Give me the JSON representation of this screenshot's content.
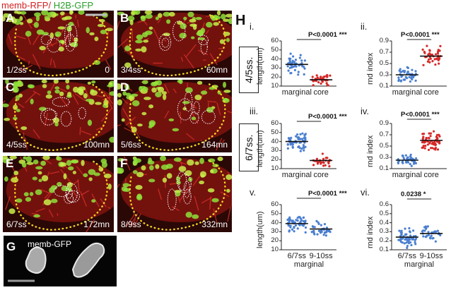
{
  "header": {
    "red_label": "memb-RFP/",
    "green_label": "H2B-GFP"
  },
  "panels": [
    {
      "letter": "A",
      "stage": "1/2ss",
      "time": "0"
    },
    {
      "letter": "B",
      "stage": "3/4ss",
      "time": "60mn"
    },
    {
      "letter": "C",
      "stage": "4/5ss",
      "time": "100mn"
    },
    {
      "letter": "D",
      "stage": "5/6ss",
      "time": "164mn"
    },
    {
      "letter": "E",
      "stage": "6/7ss",
      "time": "172mn"
    },
    {
      "letter": "F",
      "stage": "8/9ss",
      "time": "332mn"
    }
  ],
  "panel_g": {
    "letter": "G",
    "label": "memb-GFP"
  },
  "panel_h": {
    "letter": "H",
    "stage_a": "4/5ss.",
    "stage_b": "6/7ss."
  },
  "colors": {
    "red": "#d42020",
    "green": "#2a9d2a",
    "blue_dots": "#4a7fd0",
    "red_dots": "#d62828"
  },
  "chart_data": [
    {
      "id": "i",
      "type": "scatter",
      "ylabel": "length(um)",
      "ylim": [
        10,
        60
      ],
      "yticks": [
        "60",
        "50",
        "40",
        "30",
        "20",
        "10"
      ],
      "categories": [
        "marginal",
        "core"
      ],
      "series": [
        {
          "name": "marginal",
          "mean": 34,
          "spread": 8,
          "n": 45,
          "color": "#4a7fd0"
        },
        {
          "name": "core",
          "mean": 17,
          "spread": 4,
          "n": 40,
          "color": "#d62828"
        }
      ],
      "annotation": {
        "pvalue": "P<0.0001",
        "stars": "***"
      }
    },
    {
      "id": "ii",
      "type": "scatter",
      "ylabel": "rnd index",
      "ylim": [
        0.1,
        0.9
      ],
      "yticks": [
        "0.9",
        "0.7",
        "0.5",
        "0.3",
        "0.1"
      ],
      "categories": [
        "marginal",
        "core"
      ],
      "series": [
        {
          "name": "marginal",
          "mean": 0.3,
          "spread": 0.1,
          "n": 45,
          "color": "#4a7fd0"
        },
        {
          "name": "core",
          "mean": 0.63,
          "spread": 0.12,
          "n": 40,
          "color": "#d62828"
        }
      ],
      "annotation": {
        "pvalue": "P<0.0001",
        "stars": "***"
      }
    },
    {
      "id": "iii",
      "type": "scatter",
      "ylabel": "length(um)",
      "ylim": [
        10,
        60
      ],
      "yticks": [
        "60",
        "50",
        "40",
        "30",
        "20",
        "10"
      ],
      "categories": [
        "marginal",
        "core"
      ],
      "series": [
        {
          "name": "marginal",
          "mean": 40,
          "spread": 7,
          "n": 55,
          "color": "#4a7fd0"
        },
        {
          "name": "core",
          "mean": 19,
          "spread": 5,
          "n": 30,
          "color": "#d62828"
        }
      ],
      "annotation": {
        "pvalue": "P<0.0001",
        "stars": "***"
      }
    },
    {
      "id": "iv",
      "type": "scatter",
      "ylabel": "rnd index",
      "ylim": [
        0.1,
        0.9
      ],
      "yticks": [
        "0.9",
        "0.7",
        "0.5",
        "0.3",
        "0.1"
      ],
      "categories": [
        "marginal",
        "core"
      ],
      "series": [
        {
          "name": "marginal",
          "mean": 0.25,
          "spread": 0.07,
          "n": 45,
          "color": "#4a7fd0"
        },
        {
          "name": "core",
          "mean": 0.6,
          "spread": 0.12,
          "n": 60,
          "color": "#d62828"
        }
      ],
      "annotation": {
        "pvalue": "P<0.0001",
        "stars": "***"
      }
    },
    {
      "id": "v",
      "type": "scatter",
      "ylabel": "length(um)",
      "ylim": [
        10,
        60
      ],
      "yticks": [
        "60",
        "50",
        "40",
        "30",
        "20",
        "10"
      ],
      "categories": [
        "6/7ss",
        "9-10ss"
      ],
      "group_label": "marginal",
      "series": [
        {
          "name": "6/7ss",
          "mean": 39,
          "spread": 7,
          "n": 55,
          "color": "#4a7fd0"
        },
        {
          "name": "9-10ss",
          "mean": 33,
          "spread": 6,
          "n": 35,
          "color": "#4a7fd0"
        }
      ],
      "annotation": {
        "pvalue": "P<0.0001",
        "stars": "***"
      }
    },
    {
      "id": "vi",
      "type": "scatter",
      "ylabel": "rnd index",
      "ylim": [
        0.1,
        0.6
      ],
      "yticks": [
        "0.6",
        "0.5",
        "0.4",
        "0.3",
        "0.2",
        "0.1"
      ],
      "categories": [
        "6/7ss",
        "9-10ss"
      ],
      "group_label": "marginal",
      "series": [
        {
          "name": "6/7ss",
          "mean": 0.24,
          "spread": 0.08,
          "n": 55,
          "color": "#4a7fd0"
        },
        {
          "name": "9-10ss",
          "mean": 0.28,
          "spread": 0.07,
          "n": 35,
          "color": "#4a7fd0"
        }
      ],
      "annotation": {
        "pvalue": "0.0238",
        "stars": "*"
      }
    }
  ]
}
